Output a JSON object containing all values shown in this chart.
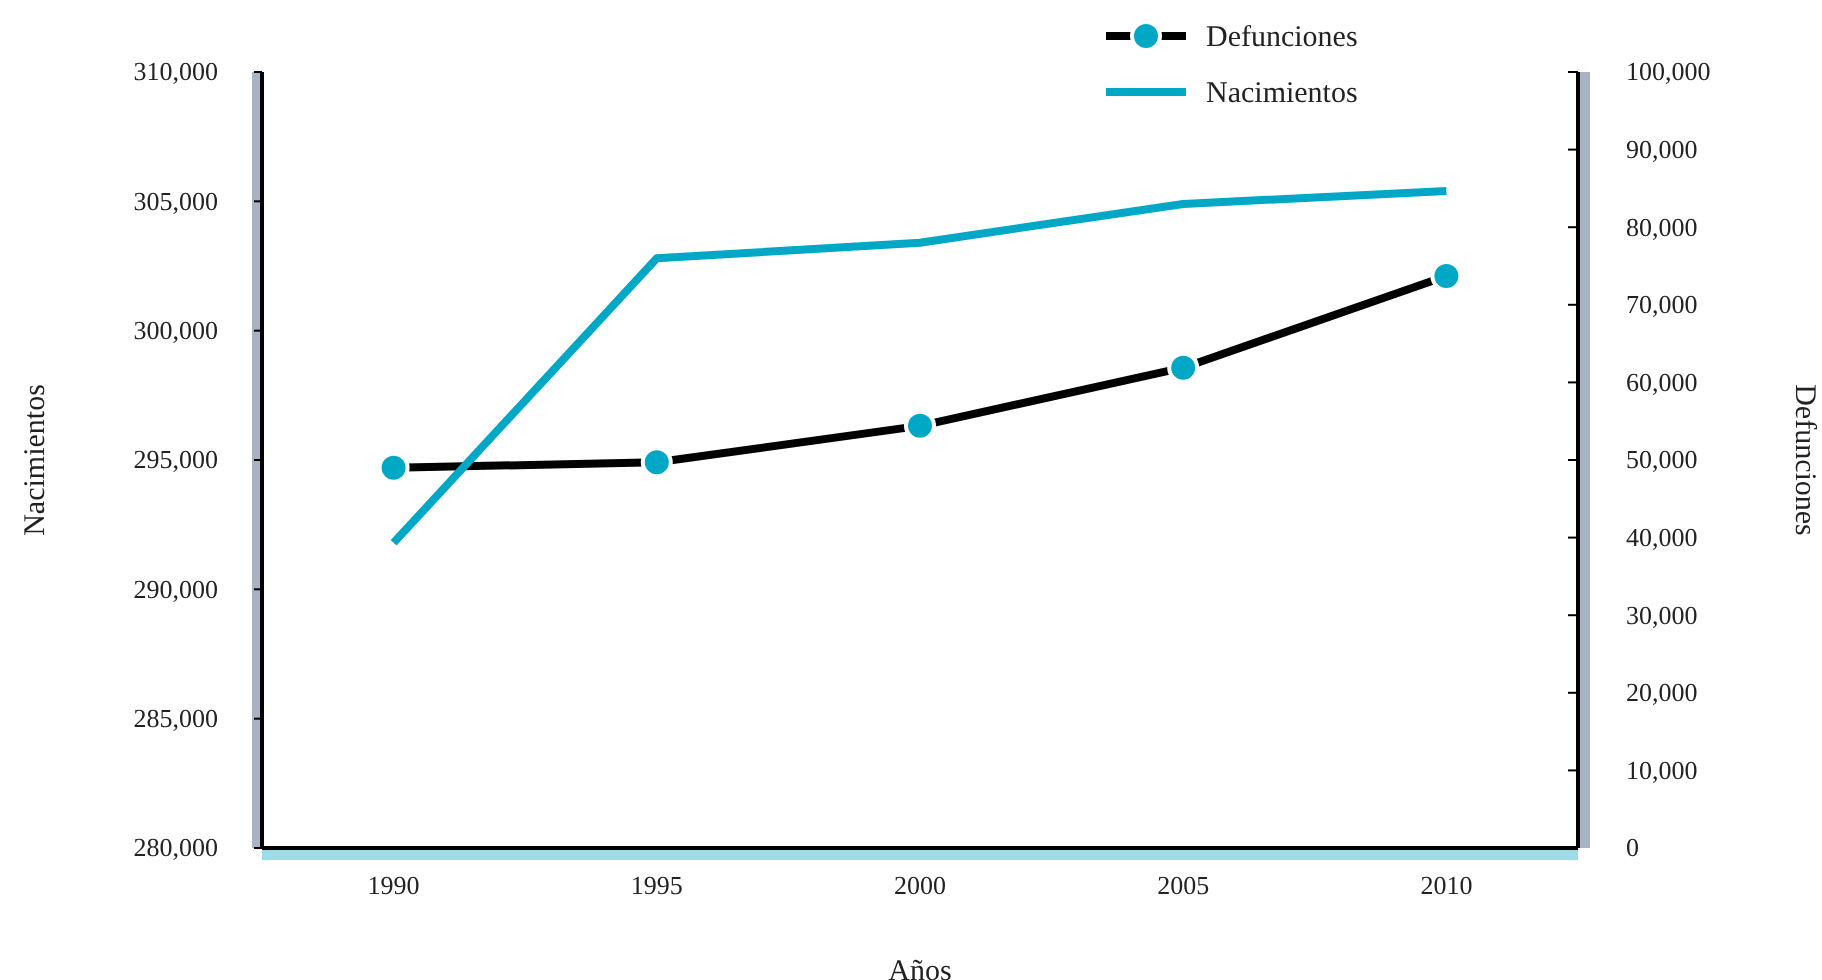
{
  "chart_data": {
    "type": "line",
    "xlabel": "Años",
    "ylabel": "Nacimientos",
    "y2label": "Defunciones",
    "categories": [
      "1990",
      "1995",
      "2000",
      "2005",
      "2010"
    ],
    "series": [
      {
        "name": "Defunciones",
        "color": "#000000",
        "axis": "y2",
        "marker": "circle",
        "values": [
          49000,
          49700,
          54400,
          61900,
          73700
        ]
      },
      {
        "name": "Nacimientos",
        "color": "#00a8c6",
        "marker": "none",
        "values": [
          291800,
          302800,
          303400,
          304900,
          305400
        ]
      }
    ],
    "ylim": [
      280000,
      310000
    ],
    "yticks": [
      {
        "value": 280000,
        "label": "280,000"
      },
      {
        "value": 285000,
        "label": "285,000"
      },
      {
        "value": 290000,
        "label": "290,000"
      },
      {
        "value": 295000,
        "label": "295,000"
      },
      {
        "value": 300000,
        "label": "300,000"
      },
      {
        "value": 305000,
        "label": "305,000"
      },
      {
        "value": 310000,
        "label": "310,000"
      }
    ],
    "y2lim": [
      0,
      100000
    ],
    "y2ticks": [
      0,
      {
        "value": 10000,
        "label": "10,000"
      },
      {
        "value": 20000,
        "label": "20,000"
      },
      {
        "value": 30000,
        "label": "30,000"
      },
      {
        "value": 40000,
        "label": "40,000"
      },
      {
        "value": 50000,
        "label": "50,000"
      },
      {
        "value": 60000,
        "label": "60,000"
      },
      {
        "value": 70000,
        "label": "70,000"
      },
      {
        "value": 80000,
        "label": "80,000"
      },
      {
        "value": 90000,
        "label": "90,000"
      },
      {
        "value": 100000,
        "label": "100,000"
      }
    ],
    "legend": "top right",
    "grid": false
  }
}
